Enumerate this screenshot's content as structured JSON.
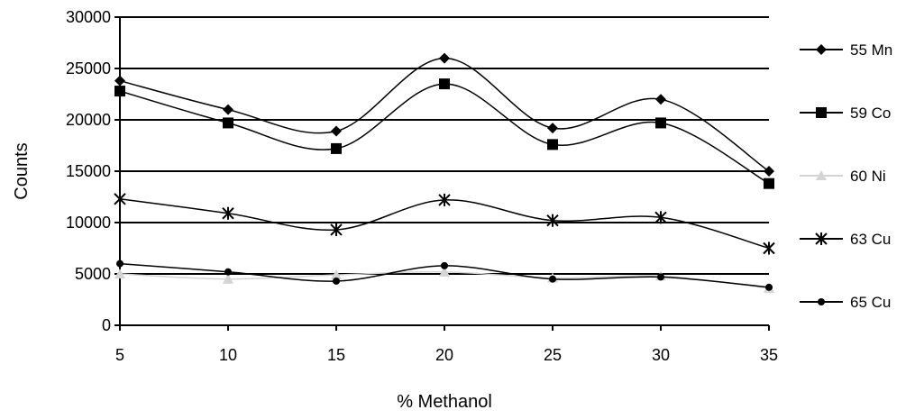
{
  "chart_data": {
    "type": "line",
    "title": "",
    "xlabel": "% Methanol",
    "ylabel": "Counts",
    "x": [
      5,
      10,
      15,
      20,
      25,
      30,
      35
    ],
    "xlim": [
      5,
      35
    ],
    "ylim": [
      0,
      30000
    ],
    "yticks": [
      0,
      5000,
      10000,
      15000,
      20000,
      25000,
      30000
    ],
    "grid": "horizontal",
    "legend_position": "right",
    "series": [
      {
        "name": "55 Mn",
        "marker": "diamond",
        "color": "#000000",
        "values": [
          23800,
          21000,
          18900,
          26000,
          19200,
          22000,
          15000
        ]
      },
      {
        "name": "59 Co",
        "marker": "square",
        "color": "#000000",
        "values": [
          22800,
          19700,
          17200,
          23500,
          17600,
          19700,
          13800
        ]
      },
      {
        "name": "60 Ni",
        "marker": "triangle",
        "color": "#d4d4d4",
        "values": [
          5000,
          4500,
          4900,
          5200,
          4600,
          4800,
          3600
        ]
      },
      {
        "name": "63 Cu",
        "marker": "star",
        "color": "#000000",
        "values": [
          12300,
          10900,
          9300,
          12200,
          10200,
          10500,
          7500
        ]
      },
      {
        "name": "65 Cu",
        "marker": "circle",
        "color": "#000000",
        "values": [
          6000,
          5200,
          4300,
          5800,
          4500,
          4700,
          3700
        ]
      }
    ]
  }
}
